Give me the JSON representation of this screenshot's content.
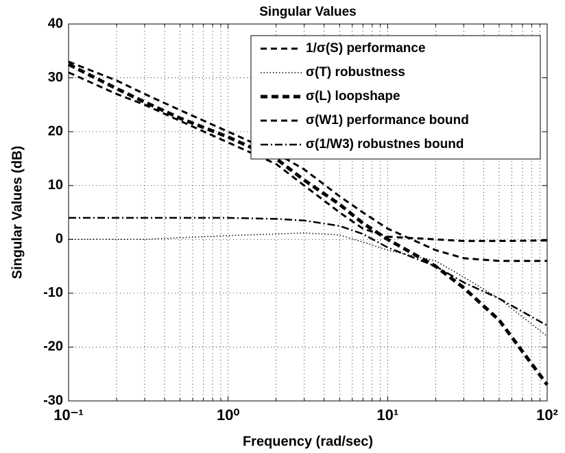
{
  "chart_data": {
    "type": "line",
    "title": "Singular Values",
    "xlabel": "Frequency (rad/sec)",
    "ylabel": "Singular Values (dB)",
    "x": [
      0.1,
      0.2,
      0.3,
      0.5,
      1,
      2,
      3,
      5,
      7,
      10,
      20,
      30,
      50,
      100
    ],
    "log_x": true,
    "grid": true,
    "legend": "upper right",
    "xlim": [
      0.1,
      100
    ],
    "xticks": [
      {
        "value": 0.1,
        "label": "10⁻¹"
      },
      {
        "value": 1,
        "label": "10⁰"
      },
      {
        "value": 10,
        "label": "10¹"
      },
      {
        "value": 100,
        "label": "10²"
      }
    ],
    "xminorticks": [
      0.2,
      0.3,
      0.4,
      0.5,
      0.6,
      0.7,
      0.8,
      0.9,
      2,
      3,
      4,
      5,
      6,
      7,
      8,
      9,
      20,
      30,
      40,
      50,
      60,
      70,
      80,
      90
    ],
    "ylim": [
      -30,
      40
    ],
    "yticks": [
      -30,
      -20,
      -10,
      0,
      10,
      20,
      30,
      40
    ],
    "series": [
      {
        "name": "1/σ(S) performance",
        "color": "#000000",
        "style": "dashed",
        "values": [
          31,
          27,
          25,
          22,
          18,
          14,
          10,
          5,
          2,
          0.5,
          0,
          -0.3,
          -0.3,
          -0.2
        ]
      },
      {
        "name": "σ(T) robustness",
        "color": "#000000",
        "style": "dotted",
        "values": [
          0,
          0,
          0,
          0.3,
          0.7,
          1,
          1.2,
          0.8,
          -0.5,
          -2,
          -4,
          -7,
          -11,
          -18
        ]
      },
      {
        "name": "σ(L) loopshape",
        "color": "#000000",
        "style": "thick-dashed",
        "values": [
          32.5,
          28,
          25.5,
          22.5,
          19,
          15,
          11,
          6.5,
          3,
          0,
          -5,
          -9,
          -15,
          -27
        ]
      },
      {
        "name": "σ(W1) performance bound",
        "color": "#000000",
        "style": "dashed",
        "values": [
          33,
          29.5,
          27,
          24,
          20,
          16,
          13,
          8,
          5,
          2,
          -2,
          -3.5,
          -4,
          -4
        ]
      },
      {
        "name": "σ(1/W3) robustnes bound",
        "color": "#000000",
        "style": "dash-dot",
        "values": [
          4,
          4,
          4,
          4,
          4,
          3.8,
          3.5,
          2.5,
          1,
          -1.5,
          -5,
          -8,
          -11,
          -16
        ]
      }
    ]
  }
}
